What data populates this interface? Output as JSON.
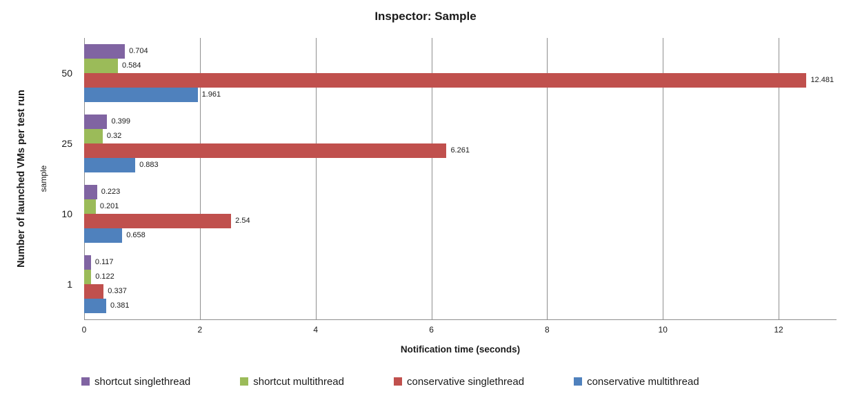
{
  "chart_data": {
    "type": "bar",
    "orientation": "horizontal",
    "title": "Inspector: Sample",
    "xlabel": "Notification time (seconds)",
    "ylabel": "Number of launched VMs per test run",
    "ylabel_secondary": "sample",
    "categories": [
      "50",
      "25",
      "10",
      "1"
    ],
    "series": [
      {
        "name": "shortcut singlethread",
        "color": "#8064A2",
        "values": [
          0.704,
          0.399,
          0.223,
          0.117
        ],
        "labels": [
          "0.704",
          "0.399",
          "0.223",
          "0.117"
        ]
      },
      {
        "name": "shortcut multithread",
        "color": "#9BBB59",
        "values": [
          0.584,
          0.32,
          0.201,
          0.122
        ],
        "labels": [
          "0.584",
          "0.32",
          "0.201",
          "0.122"
        ]
      },
      {
        "name": "conservative singlethread",
        "color": "#C0504D",
        "values": [
          12.481,
          6.261,
          2.54,
          0.337
        ],
        "labels": [
          "12.481",
          "6.261",
          "2.54",
          "0.337"
        ]
      },
      {
        "name": "conservative multithread",
        "color": "#4F81BD",
        "values": [
          1.961,
          0.883,
          0.658,
          0.381
        ],
        "labels": [
          "1.961",
          "0.883",
          "0.658",
          "0.381"
        ]
      }
    ],
    "xlim": [
      0,
      13
    ],
    "xticks": [
      0,
      2,
      4,
      6,
      8,
      10,
      12
    ],
    "grid": true,
    "gridline_color": "#8e8e8e",
    "legend_position": "bottom"
  }
}
